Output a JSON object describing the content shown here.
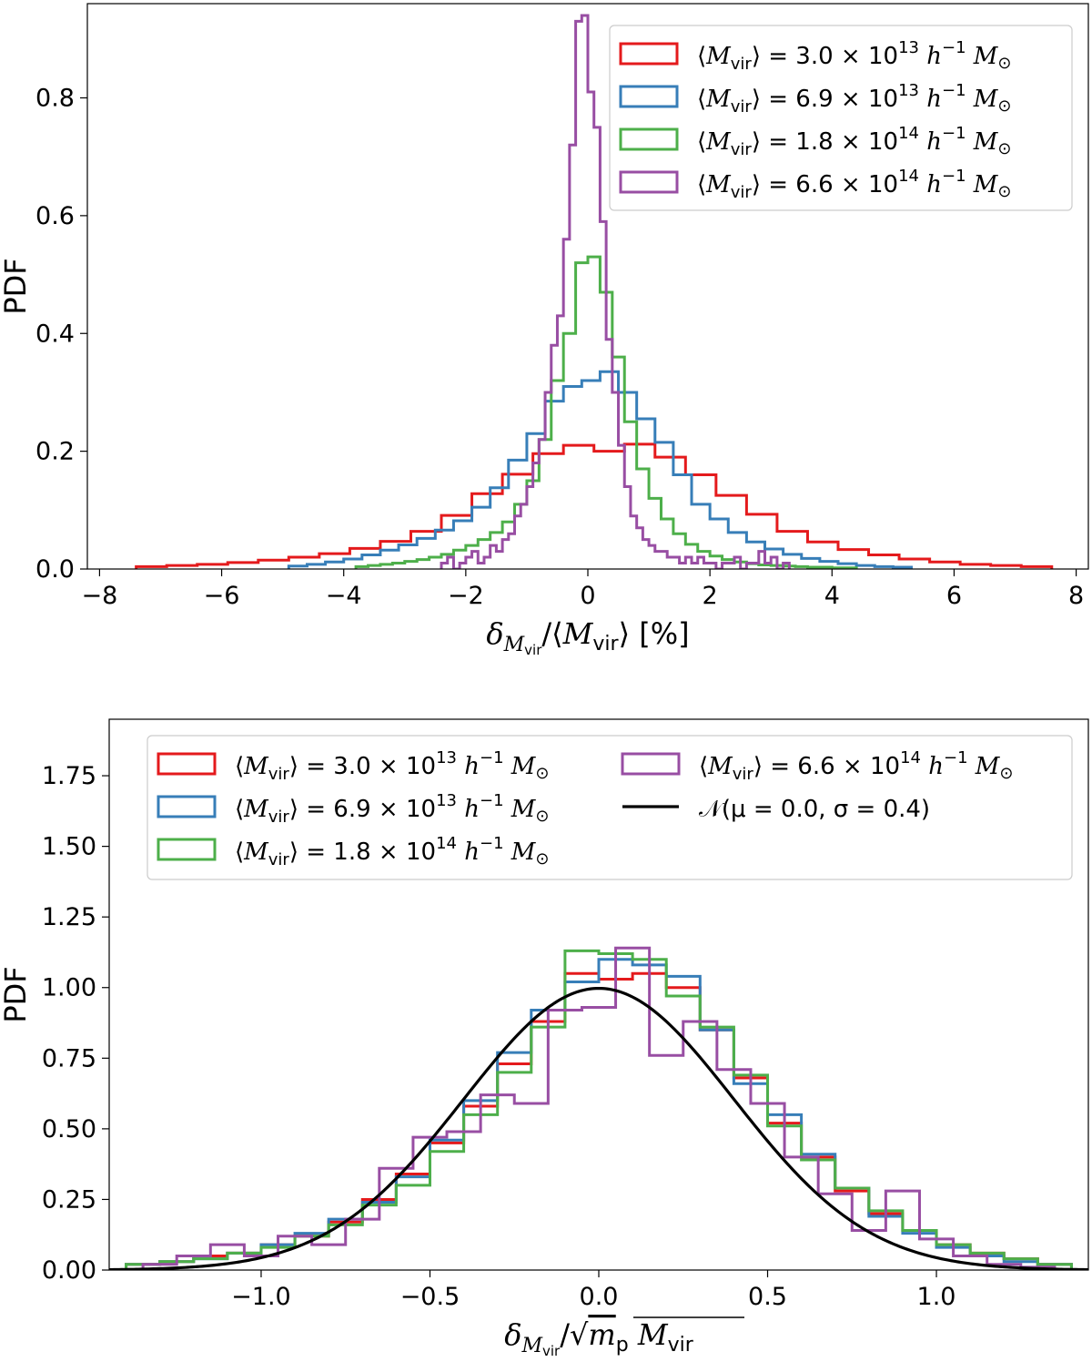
{
  "chart_data": [
    {
      "type": "histogram-step",
      "title": "",
      "xlabel": "δ_Mvir/⟨Mvir⟩ [%]",
      "ylabel": "PDF",
      "xlim": [
        -8.2,
        8.2
      ],
      "ylim": [
        0,
        0.96
      ],
      "xticks": [
        -8,
        -6,
        -4,
        -2,
        0,
        2,
        4,
        6,
        8
      ],
      "xtick_labels": [
        "−8",
        "−6",
        "−4",
        "−2",
        "0",
        "2",
        "4",
        "6",
        "8"
      ],
      "yticks": [
        0.0,
        0.2,
        0.4,
        0.6,
        0.8
      ],
      "ytick_labels": [
        "0.0",
        "0.2",
        "0.4",
        "0.6",
        "0.8"
      ],
      "legend_location": "upper-right",
      "series": [
        {
          "name": "⟨Mvir⟩ = 3.0 × 10^13 h^−1 M⊙",
          "legend": {
            "prefix": "⟨M",
            "sub": "vir",
            "mid": "⟩ = 3.0 × 10",
            "sup": "13",
            "suffix": " h⁻¹ M⊙"
          },
          "color": "#e41a1c",
          "edges": [
            -7.4,
            -6.9,
            -6.4,
            -5.9,
            -5.4,
            -4.9,
            -4.4,
            -3.9,
            -3.4,
            -2.9,
            -2.4,
            -1.9,
            -1.4,
            -0.9,
            -0.4,
            0.1,
            0.6,
            1.1,
            1.6,
            2.1,
            2.6,
            3.1,
            3.6,
            4.1,
            4.6,
            5.1,
            5.6,
            6.1,
            6.6,
            7.1,
            7.6
          ],
          "values": [
            0.004,
            0.006,
            0.008,
            0.011,
            0.015,
            0.02,
            0.026,
            0.035,
            0.047,
            0.064,
            0.091,
            0.128,
            0.161,
            0.196,
            0.21,
            0.2,
            0.212,
            0.19,
            0.16,
            0.125,
            0.093,
            0.064,
            0.046,
            0.033,
            0.024,
            0.017,
            0.012,
            0.008,
            0.006,
            0.004
          ]
        },
        {
          "name": "⟨Mvir⟩ = 6.9 × 10^13 h^−1 M⊙",
          "legend": {
            "prefix": "⟨M",
            "sub": "vir",
            "mid": "⟩ = 6.9 × 10",
            "sup": "13",
            "suffix": " h⁻¹ M⊙"
          },
          "color": "#377eb8",
          "edges": [
            -4.9,
            -4.6,
            -4.3,
            -4.0,
            -3.7,
            -3.4,
            -3.1,
            -2.8,
            -2.5,
            -2.2,
            -1.9,
            -1.6,
            -1.3,
            -1.0,
            -0.7,
            -0.4,
            -0.1,
            0.2,
            0.5,
            0.8,
            1.1,
            1.4,
            1.7,
            2.0,
            2.3,
            2.6,
            2.9,
            3.2,
            3.5,
            3.8,
            4.1,
            4.4,
            4.7,
            5.0,
            5.3
          ],
          "values": [
            0.005,
            0.008,
            0.012,
            0.017,
            0.024,
            0.032,
            0.041,
            0.052,
            0.066,
            0.082,
            0.105,
            0.138,
            0.185,
            0.23,
            0.285,
            0.31,
            0.32,
            0.335,
            0.3,
            0.255,
            0.215,
            0.16,
            0.11,
            0.085,
            0.062,
            0.046,
            0.034,
            0.025,
            0.018,
            0.013,
            0.009,
            0.006,
            0.004,
            0.003
          ]
        },
        {
          "name": "⟨Mvir⟩ = 1.8 × 10^14 h^−1 M⊙",
          "legend": {
            "prefix": "⟨M",
            "sub": "vir",
            "mid": "⟩ = 1.8 × 10",
            "sup": "14",
            "suffix": " h⁻¹ M⊙"
          },
          "color": "#4daf4a",
          "edges": [
            -3.8,
            -3.6,
            -3.4,
            -3.2,
            -3.0,
            -2.8,
            -2.6,
            -2.4,
            -2.2,
            -2.0,
            -1.8,
            -1.6,
            -1.4,
            -1.2,
            -1.0,
            -0.8,
            -0.6,
            -0.4,
            -0.2,
            0.0,
            0.2,
            0.4,
            0.6,
            0.8,
            1.0,
            1.2,
            1.4,
            1.6,
            1.8,
            2.0,
            2.2,
            2.4,
            2.6,
            2.8,
            3.0,
            3.2,
            3.4,
            3.6,
            3.8,
            4.0,
            4.2,
            4.4
          ],
          "values": [
            0.004,
            0.006,
            0.008,
            0.01,
            0.013,
            0.016,
            0.02,
            0.025,
            0.032,
            0.04,
            0.05,
            0.062,
            0.08,
            0.11,
            0.15,
            0.22,
            0.32,
            0.4,
            0.52,
            0.53,
            0.47,
            0.36,
            0.25,
            0.17,
            0.12,
            0.085,
            0.06,
            0.042,
            0.03,
            0.022,
            0.016,
            0.012,
            0.009,
            0.007,
            0.006,
            0.005,
            0.004,
            0.003,
            0.003,
            0.002,
            0.002
          ]
        },
        {
          "name": "⟨Mvir⟩ = 6.6 × 10^14 h^−1 M⊙",
          "legend": {
            "prefix": "⟨M",
            "sub": "vir",
            "mid": "⟩ = 6.6 × 10",
            "sup": "14",
            "suffix": " h⁻¹ M⊙"
          },
          "color": "#984ea3",
          "edges": [
            -2.4,
            -2.3,
            -2.2,
            -2.1,
            -2.0,
            -1.9,
            -1.8,
            -1.7,
            -1.6,
            -1.5,
            -1.4,
            -1.3,
            -1.2,
            -1.1,
            -1.0,
            -0.9,
            -0.8,
            -0.7,
            -0.6,
            -0.5,
            -0.4,
            -0.3,
            -0.2,
            -0.1,
            0.0,
            0.1,
            0.2,
            0.3,
            0.4,
            0.5,
            0.6,
            0.7,
            0.8,
            0.9,
            1.0,
            1.1,
            1.2,
            1.3,
            1.4,
            1.5,
            1.6,
            1.7,
            1.8,
            1.9,
            2.0,
            2.1,
            2.2,
            2.3,
            2.4,
            2.5,
            2.6,
            2.7,
            2.8,
            2.9,
            3.0,
            3.1,
            3.2,
            3.3
          ],
          "values": [
            0.01,
            0.02,
            0.0,
            0.01,
            0.02,
            0.03,
            0.01,
            0.02,
            0.04,
            0.03,
            0.05,
            0.06,
            0.09,
            0.11,
            0.14,
            0.18,
            0.22,
            0.3,
            0.38,
            0.43,
            0.56,
            0.72,
            0.93,
            0.94,
            0.81,
            0.75,
            0.59,
            0.39,
            0.3,
            0.21,
            0.14,
            0.09,
            0.07,
            0.05,
            0.04,
            0.03,
            0.03,
            0.02,
            0.02,
            0.01,
            0.02,
            0.01,
            0.02,
            0.01,
            0.01,
            0.0,
            0.01,
            0.01,
            0.02,
            0.0,
            0.01,
            0.01,
            0.03,
            0.01,
            0.02,
            0.0,
            0.01
          ]
        }
      ]
    },
    {
      "type": "histogram-step",
      "title": "",
      "xlabel": "δ_Mvir/√(m_p Mvir)",
      "ylabel": "PDF",
      "xlim": [
        -1.45,
        1.45
      ],
      "ylim": [
        0,
        1.95
      ],
      "xticks": [
        -1.0,
        -0.5,
        0.0,
        0.5,
        1.0
      ],
      "xtick_labels": [
        "−1.0",
        "−0.5",
        "0.0",
        "0.5",
        "1.0"
      ],
      "yticks": [
        0.0,
        0.25,
        0.5,
        0.75,
        1.0,
        1.25,
        1.5,
        1.75
      ],
      "ytick_labels": [
        "0.00",
        "0.25",
        "0.50",
        "0.75",
        "1.00",
        "1.25",
        "1.50",
        "1.75"
      ],
      "legend_location": "upper-center",
      "normal_curve": {
        "mu": 0.0,
        "sigma": 0.4,
        "label": "𝒩(μ = 0.0, σ = 0.4)",
        "color": "#000000"
      },
      "series": [
        {
          "name": "⟨Mvir⟩ = 3.0 × 10^13 h^−1 M⊙",
          "legend": {
            "prefix": "⟨M",
            "sub": "vir",
            "mid": "⟩ = 3.0 × 10",
            "sup": "13",
            "suffix": " h⁻¹ M⊙"
          },
          "color": "#e41a1c",
          "edges": [
            -1.4,
            -1.3,
            -1.2,
            -1.1,
            -1.0,
            -0.9,
            -0.8,
            -0.7,
            -0.6,
            -0.5,
            -0.4,
            -0.3,
            -0.2,
            -0.1,
            0.0,
            0.1,
            0.2,
            0.3,
            0.4,
            0.5,
            0.6,
            0.7,
            0.8,
            0.9,
            1.0,
            1.1,
            1.2,
            1.3,
            1.4
          ],
          "values": [
            0.02,
            0.03,
            0.05,
            0.06,
            0.09,
            0.12,
            0.17,
            0.25,
            0.34,
            0.45,
            0.58,
            0.73,
            0.88,
            1.05,
            1.03,
            1.05,
            1.0,
            0.85,
            0.68,
            0.52,
            0.4,
            0.28,
            0.2,
            0.14,
            0.09,
            0.06,
            0.04,
            0.02
          ]
        },
        {
          "name": "⟨Mvir⟩ = 6.9 × 10^13 h^−1 M⊙",
          "legend": {
            "prefix": "⟨M",
            "sub": "vir",
            "mid": "⟩ = 6.9 × 10",
            "sup": "13",
            "suffix": " h⁻¹ M⊙"
          },
          "color": "#377eb8",
          "edges": [
            -1.4,
            -1.3,
            -1.2,
            -1.1,
            -1.0,
            -0.9,
            -0.8,
            -0.7,
            -0.6,
            -0.5,
            -0.4,
            -0.3,
            -0.2,
            -0.1,
            0.0,
            0.1,
            0.2,
            0.3,
            0.4,
            0.5,
            0.6,
            0.7,
            0.8,
            0.9,
            1.0,
            1.1,
            1.2,
            1.3,
            1.4
          ],
          "values": [
            0.02,
            0.03,
            0.04,
            0.06,
            0.09,
            0.13,
            0.18,
            0.24,
            0.33,
            0.46,
            0.6,
            0.77,
            0.92,
            1.02,
            1.1,
            1.08,
            1.04,
            0.85,
            0.66,
            0.55,
            0.41,
            0.29,
            0.19,
            0.13,
            0.08,
            0.05,
            0.03,
            0.02
          ]
        },
        {
          "name": "⟨Mvir⟩ = 1.8 × 10^14 h^−1 M⊙",
          "legend": {
            "prefix": "⟨M",
            "sub": "vir",
            "mid": "⟩ = 1.8 × 10",
            "sup": "14",
            "suffix": " h⁻¹ M⊙"
          },
          "color": "#4daf4a",
          "edges": [
            -1.4,
            -1.3,
            -1.2,
            -1.1,
            -1.0,
            -0.9,
            -0.8,
            -0.7,
            -0.6,
            -0.5,
            -0.4,
            -0.3,
            -0.2,
            -0.1,
            0.0,
            0.1,
            0.2,
            0.3,
            0.4,
            0.5,
            0.6,
            0.7,
            0.8,
            0.9,
            1.0,
            1.1,
            1.2,
            1.3,
            1.4
          ],
          "values": [
            0.02,
            0.03,
            0.04,
            0.06,
            0.08,
            0.12,
            0.16,
            0.23,
            0.3,
            0.42,
            0.55,
            0.7,
            0.86,
            1.13,
            1.12,
            1.1,
            0.97,
            0.86,
            0.69,
            0.51,
            0.39,
            0.29,
            0.21,
            0.14,
            0.09,
            0.06,
            0.04,
            0.02
          ]
        },
        {
          "name": "⟨Mvir⟩ = 6.6 × 10^14 h^−1 M⊙",
          "legend": {
            "prefix": "⟨M",
            "sub": "vir",
            "mid": "⟩ = 6.6 × 10",
            "sup": "14",
            "suffix": " h⁻¹ M⊙"
          },
          "color": "#984ea3",
          "edges": [
            -1.35,
            -1.25,
            -1.15,
            -1.05,
            -0.95,
            -0.85,
            -0.75,
            -0.65,
            -0.55,
            -0.45,
            -0.35,
            -0.25,
            -0.15,
            -0.05,
            0.05,
            0.15,
            0.25,
            0.35,
            0.45,
            0.55,
            0.65,
            0.75,
            0.85,
            0.95,
            1.05,
            1.15,
            1.25,
            1.35
          ],
          "values": [
            0.02,
            0.05,
            0.09,
            0.05,
            0.12,
            0.09,
            0.18,
            0.36,
            0.47,
            0.49,
            0.62,
            0.59,
            0.92,
            0.93,
            1.14,
            0.76,
            0.88,
            0.71,
            0.59,
            0.4,
            0.27,
            0.14,
            0.28,
            0.11,
            0.05,
            0.02,
            0.01
          ]
        }
      ]
    }
  ]
}
